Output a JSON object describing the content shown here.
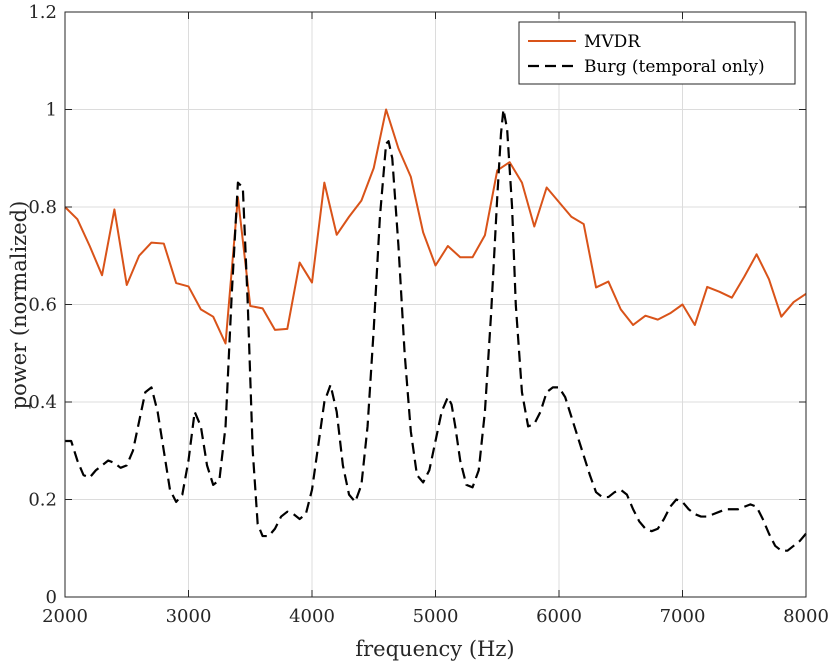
{
  "chart_data": {
    "type": "line",
    "title": "",
    "xlabel": "frequency (Hz)",
    "ylabel": "power (normalized)",
    "xlim": [
      2000,
      8000
    ],
    "ylim": [
      0,
      1.2
    ],
    "xticks": [
      2000,
      3000,
      4000,
      5000,
      6000,
      7000,
      8000
    ],
    "xtick_labels": [
      "2000",
      "3000",
      "4000",
      "5000",
      "6000",
      "7000",
      "8000"
    ],
    "yticks": [
      0,
      0.2,
      0.4,
      0.6,
      0.8,
      1,
      1.2
    ],
    "ytick_labels": [
      "0",
      "0.2",
      "0.4",
      "0.6",
      "0.8",
      "1",
      "1.2"
    ],
    "grid": true,
    "legend_position": "top-right",
    "series": [
      {
        "name": "MVDR",
        "color": "#D95319",
        "style": "solid",
        "x": [
          2000,
          2100,
          2200,
          2300,
          2400,
          2500,
          2600,
          2700,
          2800,
          2900,
          3000,
          3100,
          3200,
          3300,
          3400,
          3500,
          3600,
          3700,
          3800,
          3900,
          4000,
          4100,
          4200,
          4300,
          4400,
          4500,
          4600,
          4700,
          4800,
          4900,
          5000,
          5100,
          5200,
          5300,
          5400,
          5500,
          5600,
          5700,
          5800,
          5900,
          6000,
          6100,
          6200,
          6300,
          6400,
          6500,
          6600,
          6700,
          6800,
          6900,
          7000,
          7100,
          7200,
          7300,
          7400,
          7500,
          7600,
          7700,
          7800,
          7900,
          8000
        ],
        "y": [
          0.8,
          0.775,
          0.72,
          0.66,
          0.795,
          0.64,
          0.7,
          0.727,
          0.725,
          0.644,
          0.637,
          0.59,
          0.575,
          0.52,
          0.82,
          0.597,
          0.592,
          0.548,
          0.55,
          0.686,
          0.645,
          0.85,
          0.743,
          0.78,
          0.813,
          0.88,
          1.0,
          0.92,
          0.862,
          0.748,
          0.68,
          0.72,
          0.697,
          0.697,
          0.742,
          0.875,
          0.892,
          0.85,
          0.76,
          0.84,
          0.81,
          0.78,
          0.765,
          0.635,
          0.647,
          0.59,
          0.558,
          0.577,
          0.569,
          0.582,
          0.6,
          0.558,
          0.636,
          0.626,
          0.614,
          0.657,
          0.703,
          0.652,
          0.575,
          0.605,
          0.622
        ]
      },
      {
        "name": "Burg (temporal only)",
        "color": "#000000",
        "style": "dashed",
        "x": [
          2000,
          2050,
          2100,
          2150,
          2200,
          2250,
          2300,
          2350,
          2400,
          2450,
          2500,
          2550,
          2600,
          2650,
          2700,
          2750,
          2800,
          2850,
          2900,
          2950,
          3000,
          3050,
          3100,
          3150,
          3200,
          3250,
          3300,
          3350,
          3400,
          3440,
          3480,
          3520,
          3560,
          3600,
          3650,
          3700,
          3750,
          3800,
          3850,
          3900,
          3950,
          4000,
          4050,
          4100,
          4150,
          4200,
          4250,
          4300,
          4350,
          4400,
          4450,
          4500,
          4550,
          4600,
          4620,
          4650,
          4700,
          4750,
          4800,
          4850,
          4900,
          4950,
          5000,
          5050,
          5100,
          5130,
          5160,
          5200,
          5250,
          5300,
          5350,
          5400,
          5450,
          5500,
          5530,
          5550,
          5580,
          5620,
          5650,
          5700,
          5750,
          5800,
          5850,
          5900,
          5950,
          6000,
          6050,
          6100,
          6150,
          6200,
          6250,
          6300,
          6350,
          6400,
          6450,
          6500,
          6550,
          6600,
          6650,
          6700,
          6750,
          6800,
          6850,
          6900,
          6950,
          7000,
          7050,
          7100,
          7150,
          7200,
          7250,
          7300,
          7350,
          7400,
          7450,
          7500,
          7550,
          7600,
          7650,
          7700,
          7750,
          7800,
          7850,
          7900,
          7950,
          8000
        ],
        "y": [
          0.32,
          0.32,
          0.28,
          0.25,
          0.245,
          0.26,
          0.27,
          0.28,
          0.275,
          0.265,
          0.27,
          0.3,
          0.36,
          0.42,
          0.43,
          0.38,
          0.3,
          0.22,
          0.195,
          0.21,
          0.28,
          0.38,
          0.35,
          0.27,
          0.23,
          0.24,
          0.35,
          0.62,
          0.85,
          0.84,
          0.6,
          0.3,
          0.15,
          0.125,
          0.125,
          0.14,
          0.165,
          0.175,
          0.17,
          0.16,
          0.17,
          0.22,
          0.31,
          0.4,
          0.435,
          0.38,
          0.27,
          0.21,
          0.195,
          0.23,
          0.35,
          0.55,
          0.78,
          0.93,
          0.935,
          0.9,
          0.72,
          0.5,
          0.34,
          0.25,
          0.235,
          0.26,
          0.32,
          0.38,
          0.41,
          0.395,
          0.35,
          0.28,
          0.23,
          0.225,
          0.26,
          0.38,
          0.58,
          0.82,
          0.95,
          1.0,
          0.96,
          0.8,
          0.6,
          0.42,
          0.35,
          0.355,
          0.38,
          0.42,
          0.43,
          0.43,
          0.41,
          0.37,
          0.33,
          0.29,
          0.25,
          0.215,
          0.205,
          0.205,
          0.215,
          0.22,
          0.21,
          0.18,
          0.155,
          0.14,
          0.135,
          0.14,
          0.16,
          0.185,
          0.2,
          0.195,
          0.18,
          0.17,
          0.165,
          0.165,
          0.17,
          0.175,
          0.18,
          0.18,
          0.18,
          0.185,
          0.19,
          0.185,
          0.16,
          0.13,
          0.105,
          0.095,
          0.095,
          0.105,
          0.115,
          0.13
        ]
      }
    ]
  }
}
